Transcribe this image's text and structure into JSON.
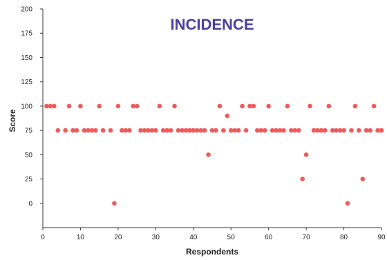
{
  "chart_data": {
    "type": "scatter",
    "title": "INCIDENCE",
    "xlabel": "Respondents",
    "ylabel": "Score",
    "xlim": [
      0,
      90
    ],
    "ylim": [
      -25,
      200
    ],
    "xticks": [
      "0",
      "10",
      "20",
      "30",
      "40",
      "50",
      "60",
      "70",
      "80",
      "90"
    ],
    "yticks": [
      "0",
      "25",
      "50",
      "75",
      "100",
      "125",
      "150",
      "175",
      "200"
    ],
    "grid": false,
    "legend": "none",
    "colors": {
      "marker": "#f15a5a",
      "title": "#4b3f9e",
      "axis": "#333333"
    },
    "points": [
      {
        "x": 1,
        "y": 100
      },
      {
        "x": 2,
        "y": 100
      },
      {
        "x": 3,
        "y": 100
      },
      {
        "x": 4,
        "y": 75
      },
      {
        "x": 6,
        "y": 75
      },
      {
        "x": 7,
        "y": 100
      },
      {
        "x": 8,
        "y": 75
      },
      {
        "x": 9,
        "y": 75
      },
      {
        "x": 10,
        "y": 100
      },
      {
        "x": 11,
        "y": 75
      },
      {
        "x": 12,
        "y": 75
      },
      {
        "x": 13,
        "y": 75
      },
      {
        "x": 14,
        "y": 75
      },
      {
        "x": 15,
        "y": 100
      },
      {
        "x": 16,
        "y": 75
      },
      {
        "x": 18,
        "y": 75
      },
      {
        "x": 19,
        "y": 0
      },
      {
        "x": 20,
        "y": 100
      },
      {
        "x": 21,
        "y": 75
      },
      {
        "x": 22,
        "y": 75
      },
      {
        "x": 23,
        "y": 75
      },
      {
        "x": 24,
        "y": 100
      },
      {
        "x": 25,
        "y": 100
      },
      {
        "x": 26,
        "y": 75
      },
      {
        "x": 27,
        "y": 75
      },
      {
        "x": 28,
        "y": 75
      },
      {
        "x": 29,
        "y": 75
      },
      {
        "x": 30,
        "y": 75
      },
      {
        "x": 31,
        "y": 100
      },
      {
        "x": 32,
        "y": 75
      },
      {
        "x": 33,
        "y": 75
      },
      {
        "x": 34,
        "y": 75
      },
      {
        "x": 35,
        "y": 100
      },
      {
        "x": 36,
        "y": 75
      },
      {
        "x": 37,
        "y": 75
      },
      {
        "x": 38,
        "y": 75
      },
      {
        "x": 39,
        "y": 75
      },
      {
        "x": 40,
        "y": 75
      },
      {
        "x": 41,
        "y": 75
      },
      {
        "x": 42,
        "y": 75
      },
      {
        "x": 43,
        "y": 75
      },
      {
        "x": 44,
        "y": 50
      },
      {
        "x": 45,
        "y": 75
      },
      {
        "x": 46,
        "y": 75
      },
      {
        "x": 47,
        "y": 100
      },
      {
        "x": 48,
        "y": 75
      },
      {
        "x": 49,
        "y": 90
      },
      {
        "x": 50,
        "y": 75
      },
      {
        "x": 51,
        "y": 75
      },
      {
        "x": 52,
        "y": 75
      },
      {
        "x": 53,
        "y": 100
      },
      {
        "x": 54,
        "y": 75
      },
      {
        "x": 55,
        "y": 100
      },
      {
        "x": 56,
        "y": 100
      },
      {
        "x": 57,
        "y": 75
      },
      {
        "x": 58,
        "y": 75
      },
      {
        "x": 59,
        "y": 75
      },
      {
        "x": 60,
        "y": 100
      },
      {
        "x": 61,
        "y": 75
      },
      {
        "x": 62,
        "y": 75
      },
      {
        "x": 63,
        "y": 75
      },
      {
        "x": 64,
        "y": 75
      },
      {
        "x": 65,
        "y": 100
      },
      {
        "x": 66,
        "y": 75
      },
      {
        "x": 67,
        "y": 75
      },
      {
        "x": 68,
        "y": 75
      },
      {
        "x": 69,
        "y": 25
      },
      {
        "x": 70,
        "y": 50
      },
      {
        "x": 71,
        "y": 100
      },
      {
        "x": 72,
        "y": 75
      },
      {
        "x": 73,
        "y": 75
      },
      {
        "x": 74,
        "y": 75
      },
      {
        "x": 75,
        "y": 75
      },
      {
        "x": 76,
        "y": 100
      },
      {
        "x": 77,
        "y": 75
      },
      {
        "x": 78,
        "y": 75
      },
      {
        "x": 79,
        "y": 75
      },
      {
        "x": 80,
        "y": 75
      },
      {
        "x": 81,
        "y": 0
      },
      {
        "x": 82,
        "y": 75
      },
      {
        "x": 83,
        "y": 100
      },
      {
        "x": 84,
        "y": 75
      },
      {
        "x": 85,
        "y": 25
      },
      {
        "x": 86,
        "y": 75
      },
      {
        "x": 87,
        "y": 75
      },
      {
        "x": 88,
        "y": 100
      },
      {
        "x": 89,
        "y": 75
      },
      {
        "x": 90,
        "y": 75
      }
    ]
  }
}
